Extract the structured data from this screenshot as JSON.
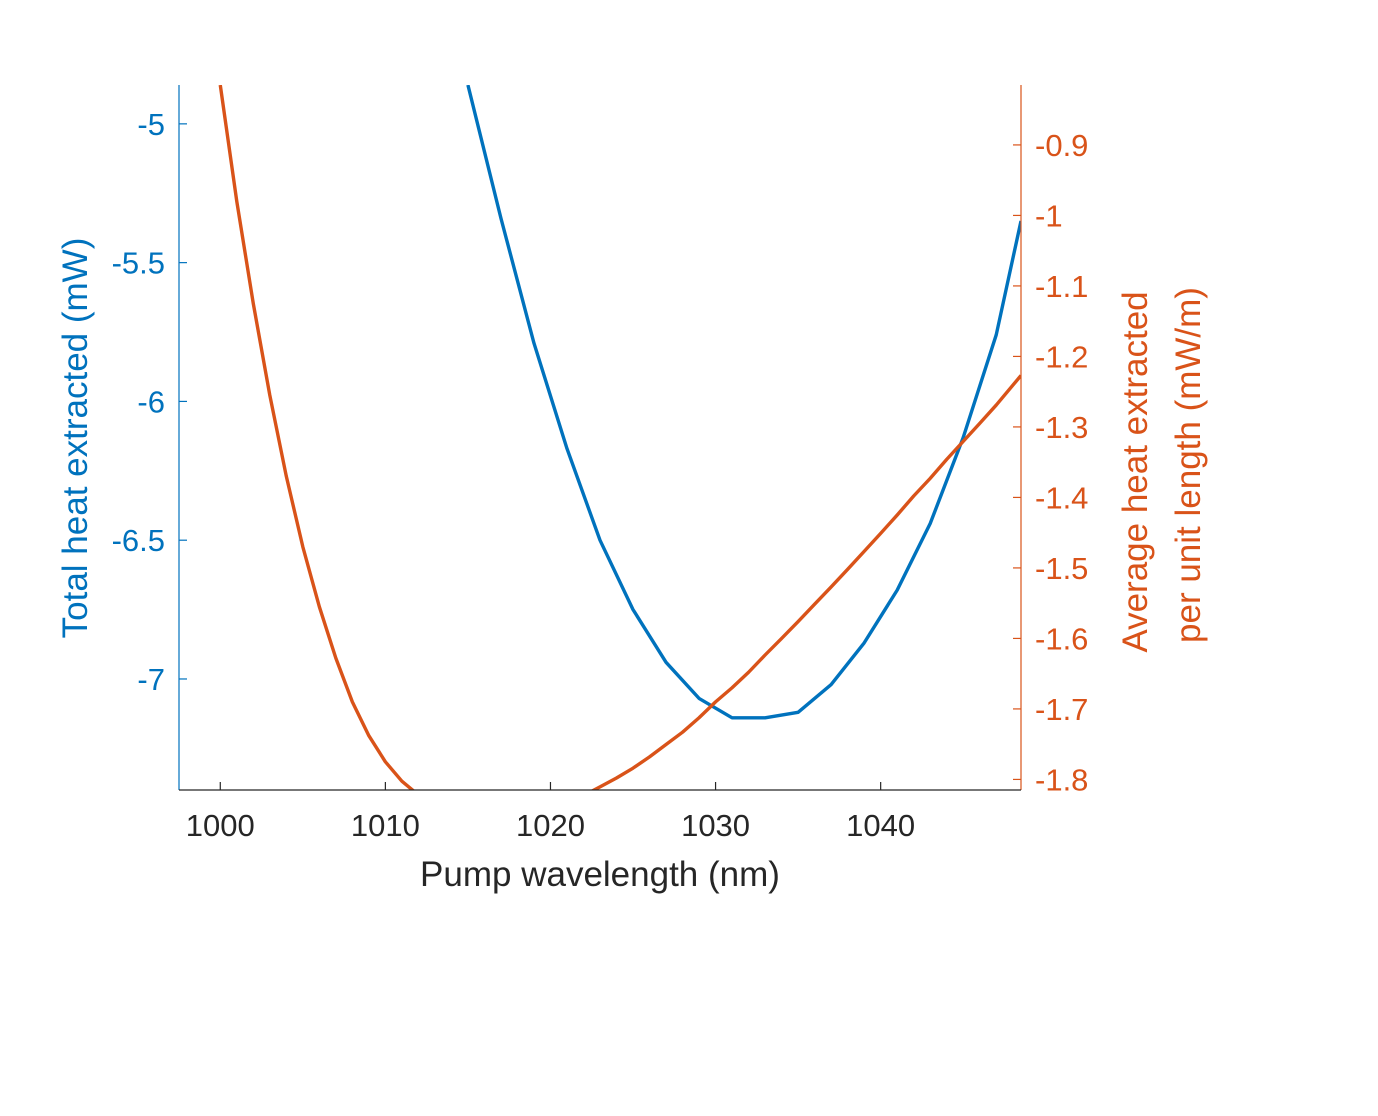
{
  "chart_data": {
    "type": "line",
    "title": "",
    "xlabel": "Pump wavelength (nm)",
    "xlim": [
      997.5,
      1048.5
    ],
    "xticks": [
      1000,
      1010,
      1020,
      1030,
      1040
    ],
    "xtick_labels": [
      "1000",
      "1010",
      "1020",
      "1030",
      "1040"
    ],
    "y_left": {
      "label": "Total heat extracted (mW)",
      "color": "#0072BD",
      "lim": [
        -7.4,
        -4.86
      ],
      "ticks": [
        -5,
        -5.5,
        -6,
        -6.5,
        -7
      ],
      "tick_labels": [
        "-5",
        "-5.5",
        "-6",
        "-6.5",
        "-7"
      ]
    },
    "y_right": {
      "label_lines": [
        "Average heat extracted",
        "per unit length (mW/m)"
      ],
      "color": "#D95319",
      "lim": [
        -1.815,
        -0.815
      ],
      "ticks": [
        -0.9,
        -1,
        -1.1,
        -1.2,
        -1.3,
        -1.4,
        -1.5,
        -1.6,
        -1.7,
        -1.8
      ],
      "tick_labels": [
        "-0.9",
        "-1",
        "-1.1",
        "-1.2",
        "-1.3",
        "-1.4",
        "-1.5",
        "-1.6",
        "-1.7",
        "-1.8"
      ]
    },
    "grid": false,
    "legend": "none",
    "series": [
      {
        "axis": "left",
        "color": "#0072BD",
        "x": [
          1015,
          1017,
          1019,
          1021,
          1023,
          1025,
          1027,
          1029,
          1031,
          1033,
          1035,
          1037,
          1039,
          1041,
          1043,
          1045,
          1047,
          1048.5
        ],
        "y": [
          -4.86,
          -5.34,
          -5.79,
          -6.17,
          -6.5,
          -6.75,
          -6.94,
          -7.07,
          -7.14,
          -7.14,
          -7.12,
          -7.02,
          -6.87,
          -6.68,
          -6.44,
          -6.13,
          -5.76,
          -5.35
        ]
      },
      {
        "axis": "right",
        "color": "#D95319",
        "x": [
          1000,
          1001,
          1002,
          1003,
          1004,
          1005,
          1006,
          1007,
          1008,
          1009,
          1010,
          1011,
          1012,
          1013,
          1014,
          1015,
          1016,
          1017,
          1018,
          1019,
          1020,
          1021,
          1022,
          1023,
          1024,
          1025,
          1026,
          1027,
          1028,
          1029,
          1030,
          1031,
          1032,
          1033,
          1034,
          1035,
          1036,
          1037,
          1038,
          1039,
          1040,
          1041,
          1042,
          1043,
          1044,
          1045,
          1046,
          1047,
          1048,
          1048.5
        ],
        "y": [
          -0.815,
          -0.98,
          -1.125,
          -1.255,
          -1.37,
          -1.47,
          -1.555,
          -1.628,
          -1.69,
          -1.738,
          -1.775,
          -1.8025,
          -1.822,
          -1.8385,
          -1.849,
          -1.853,
          -1.857,
          -1.8575,
          -1.854,
          -1.8495,
          -1.842,
          -1.8325,
          -1.823,
          -1.8105,
          -1.798,
          -1.784,
          -1.768,
          -1.7505,
          -1.733,
          -1.7125,
          -1.69,
          -1.67,
          -1.648,
          -1.6235,
          -1.6,
          -1.576,
          -1.5515,
          -1.527,
          -1.502,
          -1.4765,
          -1.451,
          -1.425,
          -1.398,
          -1.373,
          -1.346,
          -1.3205,
          -1.295,
          -1.269,
          -1.241,
          -1.227
        ]
      }
    ]
  }
}
